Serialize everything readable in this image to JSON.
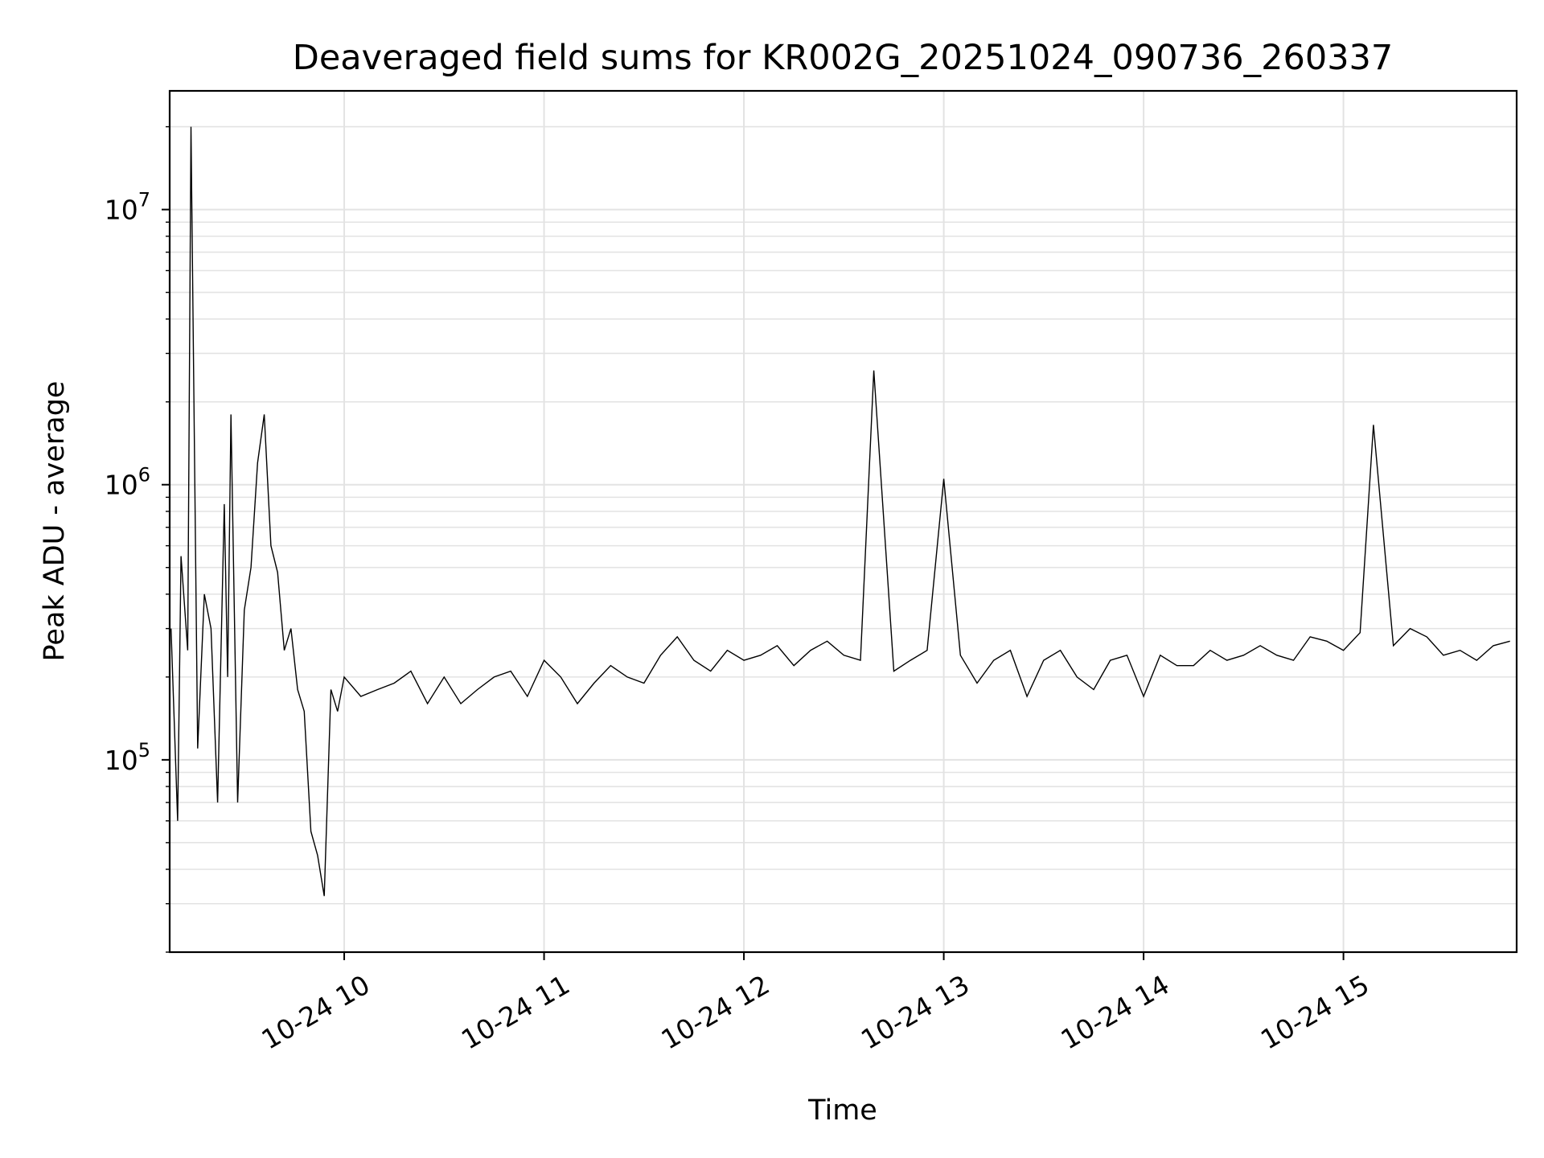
{
  "chart_data": {
    "type": "line",
    "title": "Deaveraged field sums for KR002G_20251024_090736_260337",
    "xlabel": "Time",
    "ylabel": "Peak ADU - average",
    "y_scale": "log",
    "ylim": [
      20000,
      27000000
    ],
    "xlim": [
      "2025-10-24 09:07:36",
      "2025-10-24 15:52:00"
    ],
    "grid": true,
    "line_color": "#000000",
    "x_ticks": [
      {
        "value": "2025-10-24 10:00",
        "label": "10-24 10"
      },
      {
        "value": "2025-10-24 11:00",
        "label": "10-24 11"
      },
      {
        "value": "2025-10-24 12:00",
        "label": "10-24 12"
      },
      {
        "value": "2025-10-24 13:00",
        "label": "10-24 13"
      },
      {
        "value": "2025-10-24 14:00",
        "label": "10-24 14"
      },
      {
        "value": "2025-10-24 15:00",
        "label": "10-24 15"
      }
    ],
    "y_ticks": [
      {
        "value": 100000,
        "base": "10",
        "exp": "5"
      },
      {
        "value": 1000000,
        "base": "10",
        "exp": "6"
      },
      {
        "value": 10000000,
        "base": "10",
        "exp": "7"
      }
    ],
    "series": [
      {
        "x": [
          "2025-10-24 09:08",
          "2025-10-24 09:10",
          "2025-10-24 09:11",
          "2025-10-24 09:13",
          "2025-10-24 09:14",
          "2025-10-24 09:16",
          "2025-10-24 09:18",
          "2025-10-24 09:20",
          "2025-10-24 09:22",
          "2025-10-24 09:24",
          "2025-10-24 09:25",
          "2025-10-24 09:26",
          "2025-10-24 09:28",
          "2025-10-24 09:30",
          "2025-10-24 09:32",
          "2025-10-24 09:34",
          "2025-10-24 09:36",
          "2025-10-24 09:38",
          "2025-10-24 09:40",
          "2025-10-24 09:42",
          "2025-10-24 09:44",
          "2025-10-24 09:46",
          "2025-10-24 09:48",
          "2025-10-24 09:50",
          "2025-10-24 09:52",
          "2025-10-24 09:54",
          "2025-10-24 09:56",
          "2025-10-24 09:58",
          "2025-10-24 10:00",
          "2025-10-24 10:05",
          "2025-10-24 10:10",
          "2025-10-24 10:15",
          "2025-10-24 10:20",
          "2025-10-24 10:25",
          "2025-10-24 10:30",
          "2025-10-24 10:35",
          "2025-10-24 10:40",
          "2025-10-24 10:45",
          "2025-10-24 10:50",
          "2025-10-24 10:55",
          "2025-10-24 11:00",
          "2025-10-24 11:05",
          "2025-10-24 11:10",
          "2025-10-24 11:15",
          "2025-10-24 11:20",
          "2025-10-24 11:25",
          "2025-10-24 11:30",
          "2025-10-24 11:35",
          "2025-10-24 11:40",
          "2025-10-24 11:45",
          "2025-10-24 11:50",
          "2025-10-24 11:55",
          "2025-10-24 12:00",
          "2025-10-24 12:05",
          "2025-10-24 12:10",
          "2025-10-24 12:15",
          "2025-10-24 12:20",
          "2025-10-24 12:25",
          "2025-10-24 12:30",
          "2025-10-24 12:35",
          "2025-10-24 12:39",
          "2025-10-24 12:45",
          "2025-10-24 12:50",
          "2025-10-24 12:55",
          "2025-10-24 13:00",
          "2025-10-24 13:05",
          "2025-10-24 13:10",
          "2025-10-24 13:15",
          "2025-10-24 13:20",
          "2025-10-24 13:25",
          "2025-10-24 13:30",
          "2025-10-24 13:35",
          "2025-10-24 13:40",
          "2025-10-24 13:45",
          "2025-10-24 13:50",
          "2025-10-24 13:55",
          "2025-10-24 14:00",
          "2025-10-24 14:05",
          "2025-10-24 14:10",
          "2025-10-24 14:15",
          "2025-10-24 14:20",
          "2025-10-24 14:25",
          "2025-10-24 14:30",
          "2025-10-24 14:35",
          "2025-10-24 14:40",
          "2025-10-24 14:45",
          "2025-10-24 14:50",
          "2025-10-24 14:55",
          "2025-10-24 15:00",
          "2025-10-24 15:05",
          "2025-10-24 15:09",
          "2025-10-24 15:15",
          "2025-10-24 15:20",
          "2025-10-24 15:25",
          "2025-10-24 15:30",
          "2025-10-24 15:35",
          "2025-10-24 15:40",
          "2025-10-24 15:45",
          "2025-10-24 15:50"
        ],
        "values": [
          300000,
          60000,
          550000,
          250000,
          20000000,
          110000,
          400000,
          300000,
          70000,
          850000,
          200000,
          1800000,
          70000,
          350000,
          500000,
          1200000,
          1800000,
          600000,
          480000,
          250000,
          300000,
          180000,
          150000,
          55000,
          45000,
          32000,
          180000,
          150000,
          200000,
          170000,
          180000,
          190000,
          210000,
          160000,
          200000,
          160000,
          180000,
          200000,
          210000,
          170000,
          230000,
          200000,
          160000,
          190000,
          220000,
          200000,
          190000,
          240000,
          280000,
          230000,
          210000,
          250000,
          230000,
          240000,
          260000,
          220000,
          250000,
          270000,
          240000,
          230000,
          2600000,
          210000,
          230000,
          250000,
          1050000,
          240000,
          190000,
          230000,
          250000,
          170000,
          230000,
          250000,
          200000,
          180000,
          230000,
          240000,
          170000,
          240000,
          220000,
          220000,
          250000,
          230000,
          240000,
          260000,
          240000,
          230000,
          280000,
          270000,
          250000,
          290000,
          1650000,
          260000,
          300000,
          280000,
          240000,
          250000,
          230000,
          260000,
          270000
        ]
      }
    ]
  }
}
